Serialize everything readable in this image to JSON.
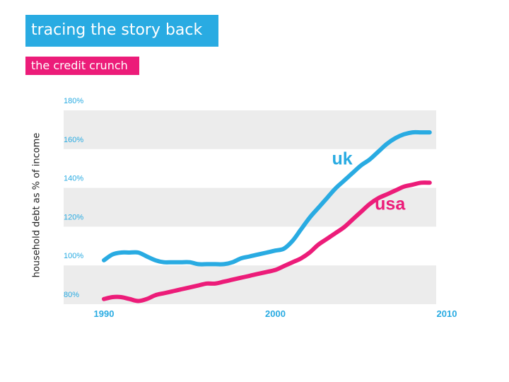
{
  "header": {
    "title": "tracing the story back",
    "subtitle": "the credit crunch"
  },
  "colors": {
    "title_bg": "#29abe2",
    "subtitle_bg": "#ec1c79",
    "uk": "#29abe2",
    "usa": "#ec1c79",
    "grid_band": "#ececec"
  },
  "chart_data": {
    "type": "line",
    "title": "",
    "xlabel": "",
    "ylabel": "household debt as % of income",
    "xlim": [
      1990,
      2010
    ],
    "ylim": [
      80,
      180
    ],
    "yticks": [
      80,
      100,
      120,
      140,
      160,
      180
    ],
    "ytick_labels": [
      "80%",
      "100%",
      "120%",
      "140%",
      "160%",
      "180%"
    ],
    "xticks": [
      1990,
      2000,
      2010
    ],
    "xtick_labels": [
      "1990",
      "2000",
      "2010"
    ],
    "grid": true,
    "legend": "inline labels",
    "series": [
      {
        "name": "uk",
        "color": "#29abe2",
        "x": [
          1990,
          1990.5,
          1991,
          1991.5,
          1992,
          1992.5,
          1993,
          1993.5,
          1994,
          1994.5,
          1995,
          1995.5,
          1996,
          1996.5,
          1997,
          1997.5,
          1998,
          1998.5,
          1999,
          1999.5,
          2000,
          2000.5,
          2001,
          2001.5,
          2002,
          2002.5,
          2003,
          2003.5,
          2004,
          2004.5,
          2005,
          2005.5,
          2006,
          2006.5,
          2007,
          2007.5,
          2008,
          2008.5,
          2009
        ],
        "y": [
          99,
          102,
          103,
          103,
          103,
          101,
          99,
          98,
          98,
          98,
          98,
          97,
          97,
          97,
          97,
          98,
          100,
          101,
          102,
          103,
          104,
          105,
          109,
          115,
          121,
          126,
          131,
          136,
          140,
          144,
          148,
          151,
          155,
          159,
          162,
          164,
          165,
          165,
          165
        ]
      },
      {
        "name": "usa",
        "color": "#ec1c79",
        "x": [
          1990,
          1990.5,
          1991,
          1991.5,
          1992,
          1992.5,
          1993,
          1993.5,
          1994,
          1994.5,
          1995,
          1995.5,
          1996,
          1996.5,
          1997,
          1997.5,
          1998,
          1998.5,
          1999,
          1999.5,
          2000,
          2000.5,
          2001,
          2001.5,
          2002,
          2002.5,
          2003,
          2003.5,
          2004,
          2004.5,
          2005,
          2005.5,
          2006,
          2006.5,
          2007,
          2007.5,
          2008,
          2008.5,
          2009
        ],
        "y": [
          79,
          80,
          80,
          79,
          78,
          79,
          81,
          82,
          83,
          84,
          85,
          86,
          87,
          87,
          88,
          89,
          90,
          91,
          92,
          93,
          94,
          96,
          98,
          100,
          103,
          107,
          110,
          113,
          116,
          120,
          124,
          128,
          131,
          133,
          135,
          137,
          138,
          139,
          139
        ]
      }
    ],
    "annotations": [
      {
        "text": "uk",
        "x": 2003.3,
        "y": 148.5,
        "color": "#29abe2"
      },
      {
        "text": "usa",
        "x": 2005.8,
        "y": 125,
        "color": "#ec1c79"
      }
    ]
  }
}
